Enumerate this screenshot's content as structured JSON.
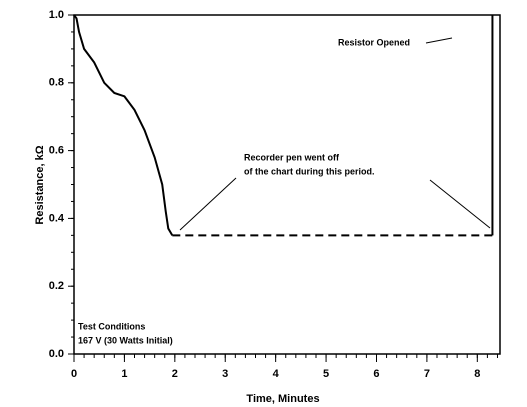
{
  "chart_data": {
    "type": "line",
    "xlabel": "Time, Minutes",
    "ylabel": "Resistance, kΩ",
    "xlim": [
      0,
      8.45
    ],
    "xticks": [
      0,
      1,
      2,
      3,
      4,
      5,
      6,
      7,
      8
    ],
    "ylim": [
      0,
      1
    ],
    "yticks": [
      {
        "value": 0,
        "label": "0.0"
      },
      {
        "value": 0.2,
        "label": "0.2"
      },
      {
        "value": 0.4,
        "label": "0.4"
      },
      {
        "value": 0.6,
        "label": "0.6"
      },
      {
        "value": 0.8,
        "label": "0.8"
      },
      {
        "value": 1,
        "label": "1.0"
      }
    ],
    "series": [
      {
        "color": "#000000",
        "dash": false,
        "x": [
          0,
          0.05,
          0.1,
          0.2,
          0.4,
          0.6,
          0.8,
          1.0,
          1.2,
          1.4,
          1.6,
          1.75,
          1.82,
          1.87,
          1.95
        ],
        "values": [
          1.0,
          0.99,
          0.95,
          0.9,
          0.86,
          0.8,
          0.77,
          0.76,
          0.72,
          0.66,
          0.58,
          0.5,
          0.42,
          0.37,
          0.35
        ]
      },
      {
        "color": "#000000",
        "dash": true,
        "x": [
          1.95,
          8.3
        ],
        "values": [
          0.35,
          0.35
        ]
      },
      {
        "color": "#000000",
        "dash": false,
        "x": [
          8.3,
          8.3
        ],
        "values": [
          0.35,
          1.0
        ]
      }
    ],
    "annotations": [
      "Resistor Opened",
      "Recorder pen went off",
      "of the chart during this period.",
      "Test Conditions",
      "167 V (30 Watts Initial)"
    ]
  }
}
